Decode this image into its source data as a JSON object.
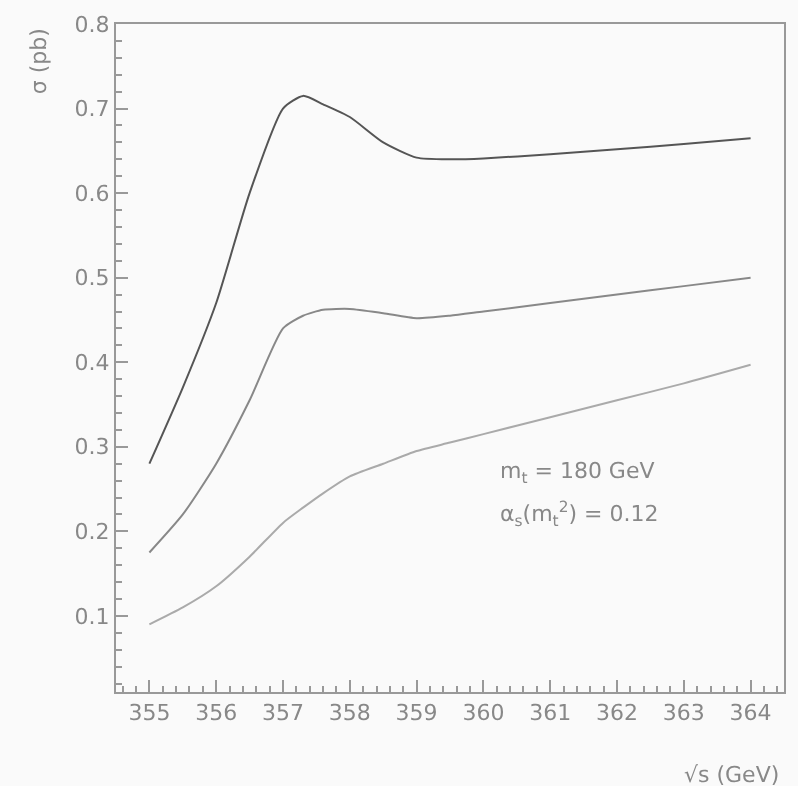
{
  "chart_data": {
    "type": "line",
    "xlabel": "√s (GeV)",
    "ylabel": "σ (pb)",
    "x": [
      355,
      355.5,
      356,
      356.5,
      357,
      357.3,
      357.6,
      358,
      358.5,
      359,
      359.5,
      360,
      361,
      362,
      363,
      364
    ],
    "series": [
      {
        "color": "#555555",
        "values": [
          0.28,
          0.37,
          0.47,
          0.6,
          0.7,
          0.715,
          0.705,
          0.69,
          0.66,
          0.642,
          0.64,
          0.641,
          0.646,
          0.652,
          0.658,
          0.665
        ]
      },
      {
        "color": "#888888",
        "values": [
          0.175,
          0.22,
          0.28,
          0.355,
          0.44,
          0.455,
          0.462,
          0.463,
          0.458,
          0.452,
          0.455,
          0.46,
          0.47,
          0.48,
          0.49,
          0.5
        ]
      },
      {
        "color": "#aaaaaa",
        "values": [
          0.09,
          0.11,
          0.135,
          0.17,
          0.21,
          0.228,
          0.245,
          0.265,
          0.28,
          0.295,
          0.305,
          0.315,
          0.335,
          0.355,
          0.375,
          0.397
        ]
      }
    ],
    "xlim": [
      354.5,
      364.5
    ],
    "xticks": [
      355,
      356,
      357,
      358,
      359,
      360,
      361,
      362,
      363,
      364
    ],
    "ylim": [
      0.01,
      0.8
    ],
    "yticks": [
      0.1,
      0.2,
      0.3,
      0.4,
      0.5,
      0.6,
      0.7,
      0.8
    ],
    "annotations": [
      "m$_{t}$ = 180 GeV",
      "α$_{s}$(m$_{t}$$^{2}$) = 0.12"
    ],
    "marker": "none",
    "line_style": "solid"
  }
}
